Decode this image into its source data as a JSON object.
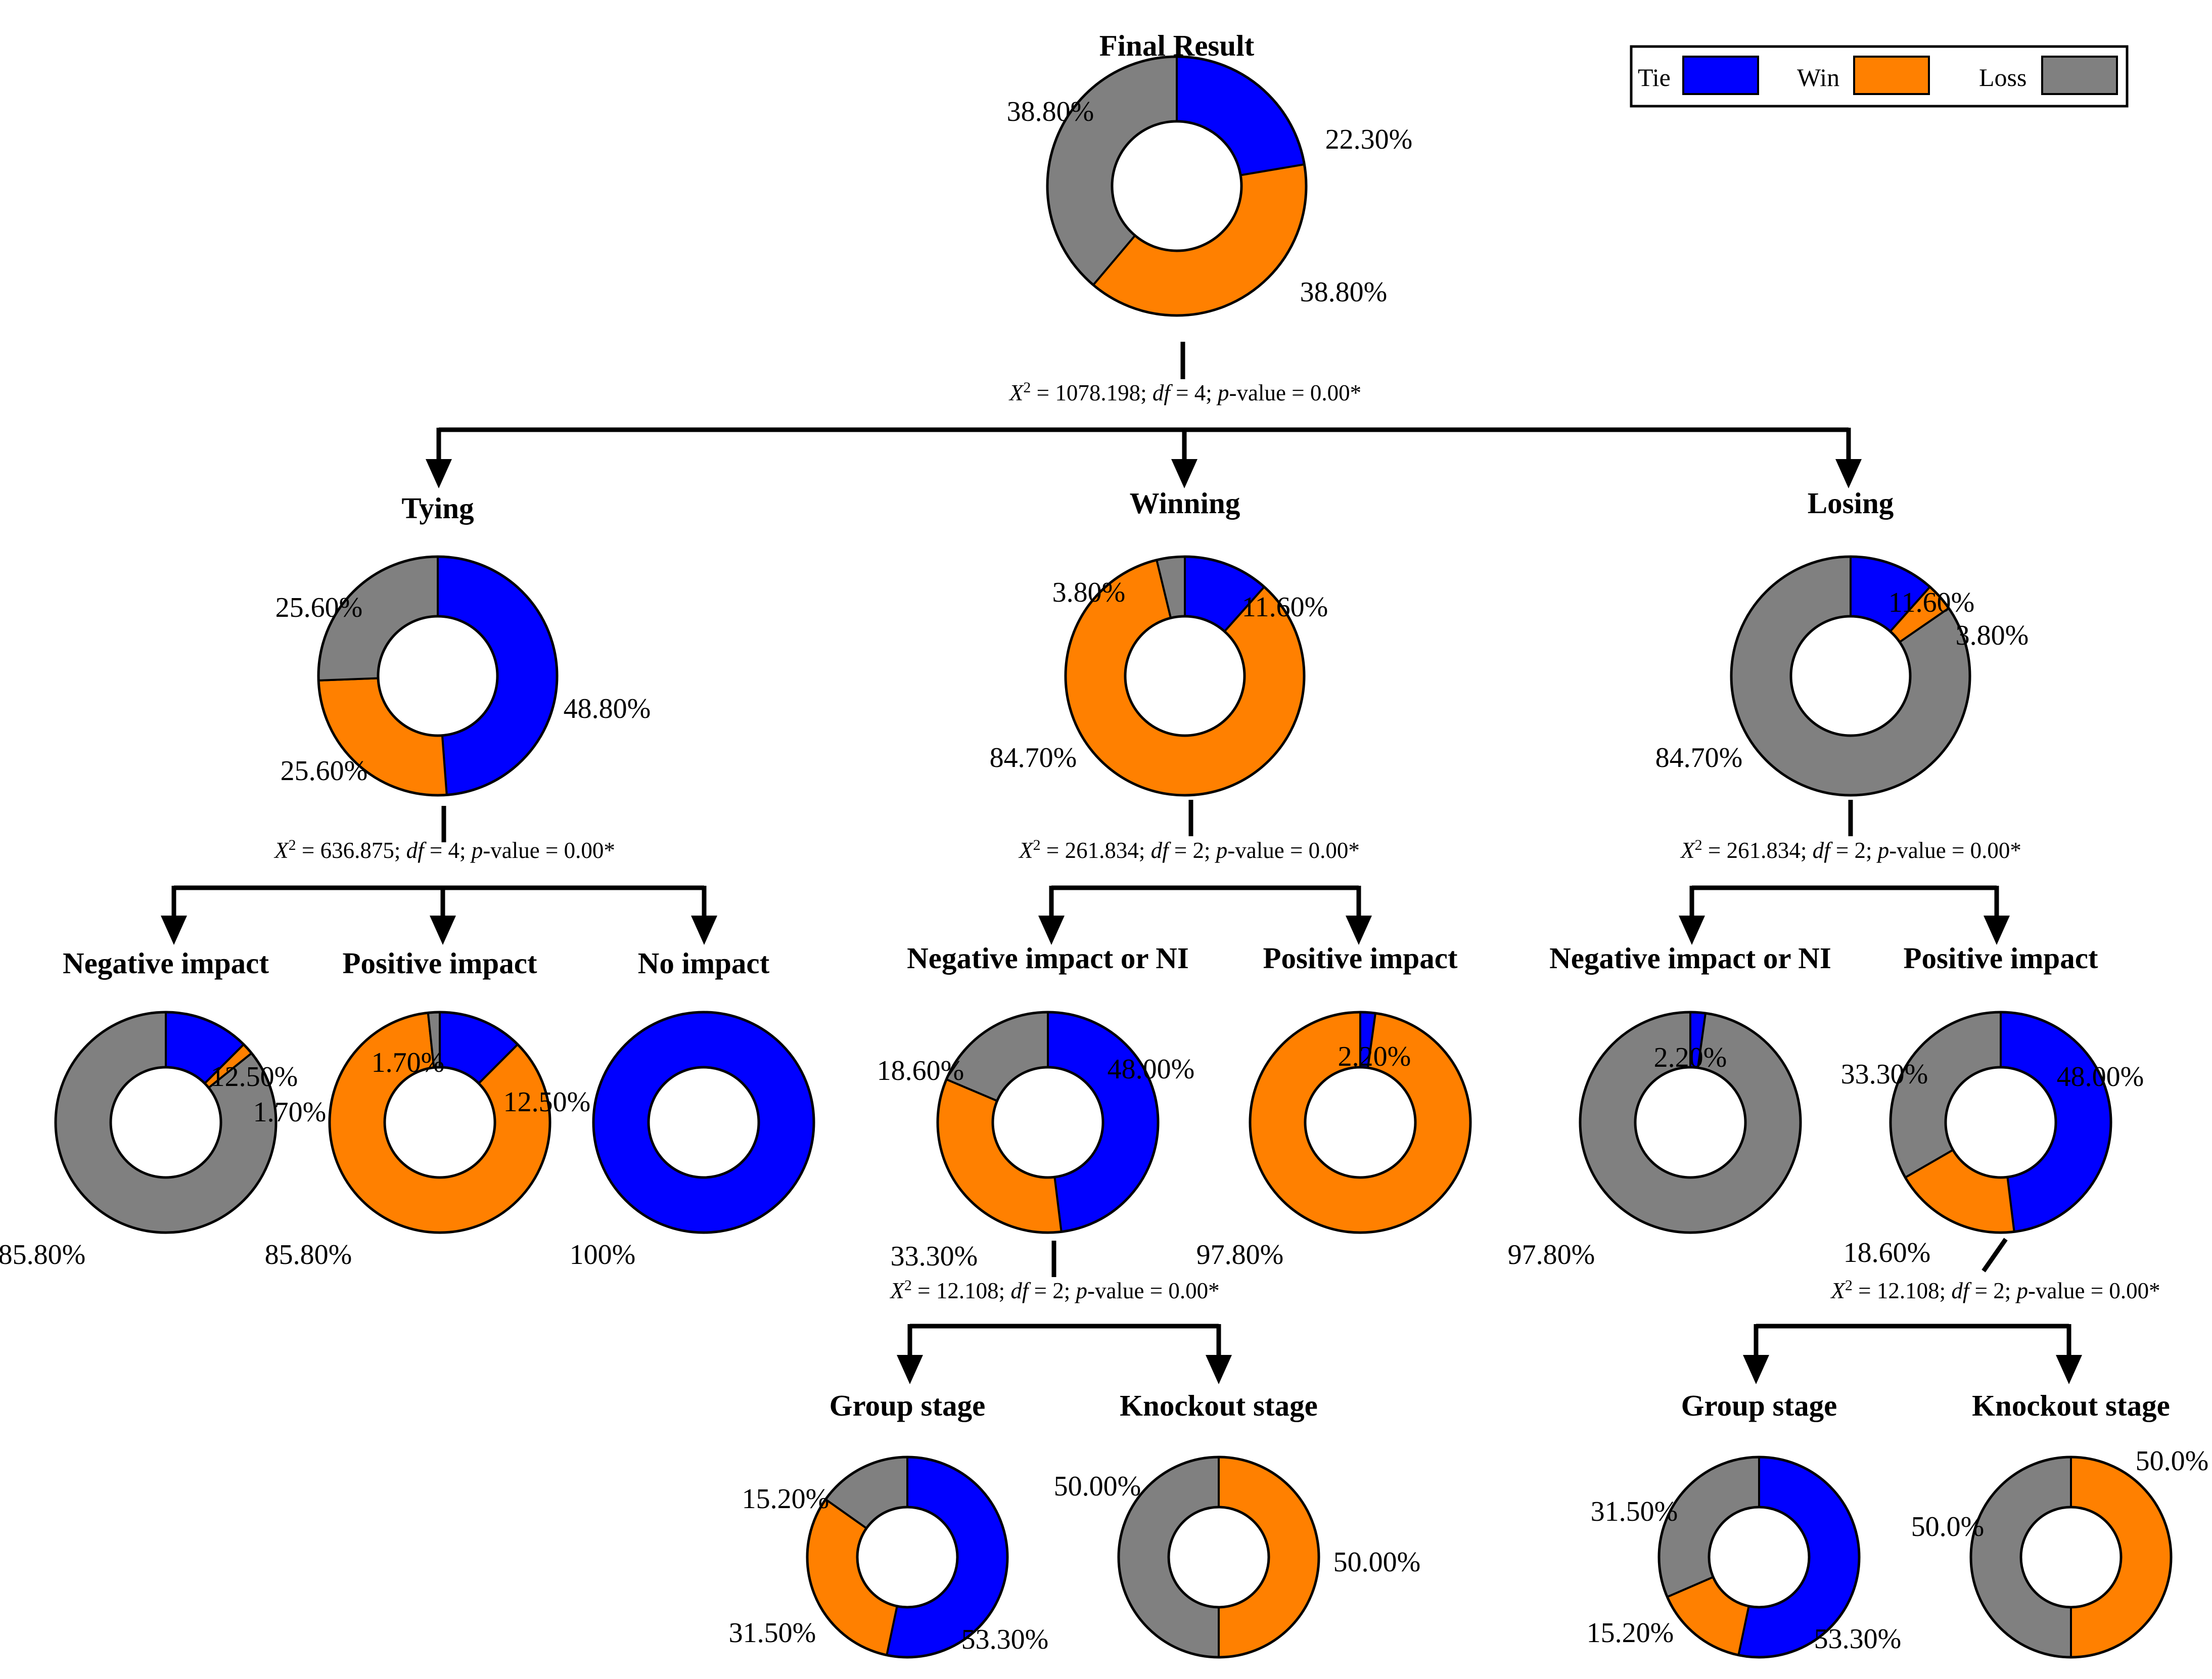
{
  "colors": {
    "tie": "#0000ff",
    "win": "#ff8000",
    "loss": "#808080"
  },
  "legend": [
    {
      "key": "tie",
      "label": "Tie"
    },
    {
      "key": "win",
      "label": "Win"
    },
    {
      "key": "loss",
      "label": "Loss"
    }
  ],
  "nodes": [
    {
      "id": "final",
      "title": "Final Result",
      "slices": [
        {
          "key": "tie",
          "value": 22.3,
          "label": "22.30%"
        },
        {
          "key": "win",
          "value": 38.8,
          "label": "38.80%"
        },
        {
          "key": "loss",
          "value": 38.8,
          "label": "38.80%"
        }
      ]
    },
    {
      "id": "tying",
      "title": "Tying",
      "slices": [
        {
          "key": "tie",
          "value": 48.8,
          "label": "48.80%"
        },
        {
          "key": "win",
          "value": 25.6,
          "label": "25.60%"
        },
        {
          "key": "loss",
          "value": 25.6,
          "label": "25.60%"
        }
      ]
    },
    {
      "id": "winning",
      "title": "Winning",
      "slices": [
        {
          "key": "tie",
          "value": 11.6,
          "label": "11.60%"
        },
        {
          "key": "win",
          "value": 84.7,
          "label": "84.70%"
        },
        {
          "key": "loss",
          "value": 3.8,
          "label": "3.80%"
        }
      ]
    },
    {
      "id": "losing",
      "title": "Losing",
      "slices": [
        {
          "key": "tie",
          "value": 11.6,
          "label": "11.60%"
        },
        {
          "key": "win",
          "value": 3.8,
          "label": "3.80%"
        },
        {
          "key": "loss",
          "value": 84.7,
          "label": "84.70%"
        }
      ]
    },
    {
      "id": "tying_neg",
      "title": "Negative impact",
      "slices": [
        {
          "key": "tie",
          "value": 12.5,
          "label": "12.50%"
        },
        {
          "key": "win",
          "value": 1.7,
          "label": "1.70%"
        },
        {
          "key": "loss",
          "value": 85.8,
          "label": "85.80%"
        }
      ]
    },
    {
      "id": "tying_pos",
      "title": "Positive impact",
      "slices": [
        {
          "key": "tie",
          "value": 12.5,
          "label": "12.50%"
        },
        {
          "key": "win",
          "value": 85.8,
          "label": "85.80%"
        },
        {
          "key": "loss",
          "value": 1.7,
          "label": "1.70%"
        }
      ]
    },
    {
      "id": "tying_none",
      "title": "No impact",
      "slices": [
        {
          "key": "tie",
          "value": 100,
          "label": "100%"
        }
      ]
    },
    {
      "id": "winning_neg",
      "title": "Negative impact or NI",
      "slices": [
        {
          "key": "tie",
          "value": 48.0,
          "label": "48.00%"
        },
        {
          "key": "win",
          "value": 33.3,
          "label": "33.30%"
        },
        {
          "key": "loss",
          "value": 18.6,
          "label": "18.60%"
        }
      ]
    },
    {
      "id": "winning_pos",
      "title": "Positive impact",
      "slices": [
        {
          "key": "tie",
          "value": 2.2,
          "label": "2.20%"
        },
        {
          "key": "win",
          "value": 97.8,
          "label": "97.80%"
        }
      ]
    },
    {
      "id": "losing_neg",
      "title": "Negative impact or NI",
      "slices": [
        {
          "key": "tie",
          "value": 2.2,
          "label": "2.20%"
        },
        {
          "key": "loss",
          "value": 97.8,
          "label": "97.80%"
        }
      ]
    },
    {
      "id": "losing_pos",
      "title": "Positive impact",
      "slices": [
        {
          "key": "tie",
          "value": 48.0,
          "label": "48.00%"
        },
        {
          "key": "win",
          "value": 18.6,
          "label": "18.60%"
        },
        {
          "key": "loss",
          "value": 33.3,
          "label": "33.30%"
        }
      ]
    },
    {
      "id": "winning_group",
      "title": "Group stage",
      "slices": [
        {
          "key": "tie",
          "value": 53.3,
          "label": "53.30%"
        },
        {
          "key": "win",
          "value": 31.5,
          "label": "31.50%"
        },
        {
          "key": "loss",
          "value": 15.2,
          "label": "15.20%"
        }
      ]
    },
    {
      "id": "winning_knockout",
      "title": "Knockout stage",
      "slices": [
        {
          "key": "win",
          "value": 50.0,
          "label": "50.00%"
        },
        {
          "key": "loss",
          "value": 50.0,
          "label": "50.00%"
        }
      ]
    },
    {
      "id": "losing_group",
      "title": "Group stage",
      "slices": [
        {
          "key": "tie",
          "value": 53.3,
          "label": "53.30%"
        },
        {
          "key": "win",
          "value": 15.2,
          "label": "15.20%"
        },
        {
          "key": "loss",
          "value": 31.5,
          "label": "31.50%"
        }
      ]
    },
    {
      "id": "losing_knockout",
      "title": "Knockout stage",
      "slices": [
        {
          "key": "win",
          "value": 50.0,
          "label": "50.0%"
        },
        {
          "key": "loss",
          "value": 50.0,
          "label": "50.0%"
        }
      ]
    }
  ],
  "tests": [
    {
      "id": "t_final",
      "chi": "1078.198",
      "df": "4",
      "p": "0.00*"
    },
    {
      "id": "t_tying",
      "chi": "636.875",
      "df": "4",
      "p": "0.00*"
    },
    {
      "id": "t_winning",
      "chi": "261.834",
      "df": "2",
      "p": "0.00*"
    },
    {
      "id": "t_losing",
      "chi": "261.834",
      "df": "2",
      "p": "0.00*"
    },
    {
      "id": "t_winning_neg",
      "chi": "12.108",
      "df": "2",
      "p": "0.00*"
    },
    {
      "id": "t_losing_pos",
      "chi": "12.108",
      "df": "2",
      "p": "0.00*"
    }
  ],
  "stat_text": {
    "chi_symbol": "X",
    "chi_power": "2",
    "df_label": "df",
    "p_label": "p",
    "p_suffix": "-value"
  }
}
